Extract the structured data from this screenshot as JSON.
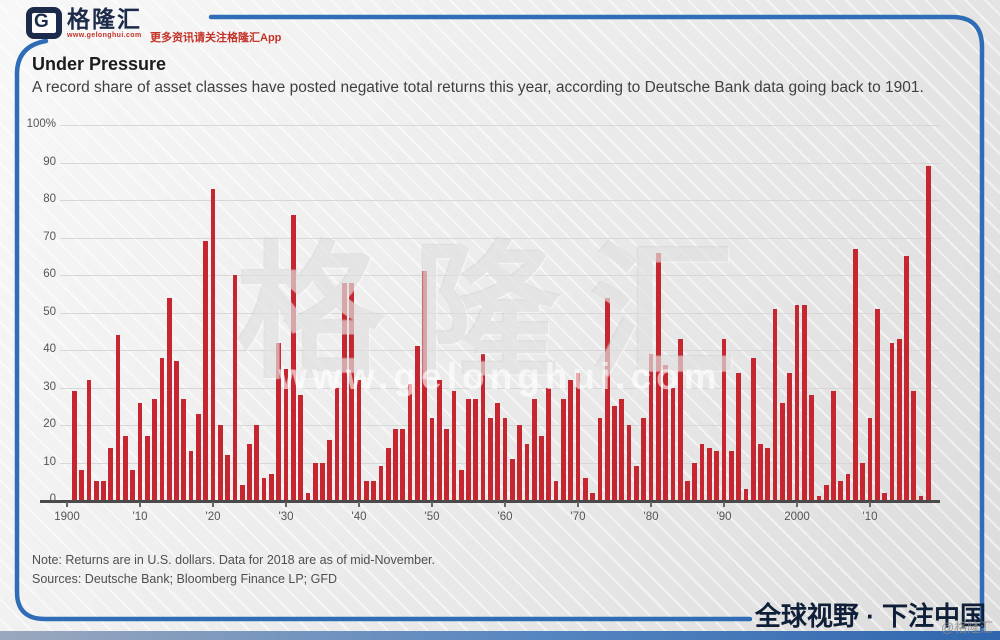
{
  "header": {
    "logo_letter": "G",
    "logo_text": "格隆汇",
    "logo_url": "www.gelonghui.com",
    "tagline": "更多资讯请关注格隆汇App"
  },
  "chart_data": {
    "type": "bar",
    "title": "Under Pressure",
    "subtitle": "A record share of asset classes have posted negative total returns this year, according to Deutsche Bank data going back to 1901.",
    "unit": "%",
    "start_year": 1901,
    "end_year": 2018,
    "values": [
      29,
      8,
      32,
      5,
      5,
      14,
      44,
      17,
      8,
      26,
      17,
      27,
      38,
      54,
      37,
      27,
      13,
      23,
      69,
      83,
      20,
      12,
      60,
      4,
      15,
      20,
      6,
      7,
      42,
      35,
      76,
      28,
      2,
      10,
      10,
      16,
      30,
      58,
      58,
      32,
      5,
      5,
      9,
      14,
      19,
      19,
      31,
      41,
      61,
      22,
      32,
      19,
      29,
      8,
      27,
      27,
      39,
      22,
      26,
      22,
      11,
      20,
      15,
      27,
      17,
      30,
      5,
      27,
      32,
      34,
      6,
      2,
      22,
      54,
      25,
      27,
      20,
      9,
      22,
      39,
      66,
      36,
      30,
      43,
      5,
      10,
      15,
      14,
      13,
      43,
      13,
      34,
      3,
      38,
      15,
      14,
      51,
      26,
      34,
      52,
      52,
      28,
      1,
      4,
      29,
      5,
      7,
      67,
      10,
      22,
      51,
      2,
      42,
      43,
      65,
      29,
      1,
      89
    ],
    "x_tick_labels": [
      "1900",
      "'10",
      "'20",
      "'30",
      "'40",
      "'50",
      "'60",
      "'70",
      "'80",
      "'90",
      "2000",
      "'10"
    ],
    "y_tick_labels": [
      "100%",
      "90",
      "80",
      "70",
      "60",
      "50",
      "40",
      "30",
      "20",
      "10",
      "0"
    ],
    "ylim": [
      0,
      100
    ],
    "grid": true,
    "legend": "none",
    "bar_color": "#c5262f"
  },
  "watermark": {
    "text": "格隆汇",
    "url": "www.gelonghui.com"
  },
  "footer": {
    "note": "Note: Returns are in U.S. dollars. Data for 2018 are as of mid-November.",
    "sources": "Sources: Deutsche Bank; Bloomberg Finance LP; GFD",
    "slogan": "全球视野 · 下注中国",
    "handle": "@格隆汇"
  },
  "colors": {
    "bar": "#c5262f",
    "frame": "#2f6db6",
    "navy": "#1d2b4a",
    "accent_red": "#c43227"
  }
}
